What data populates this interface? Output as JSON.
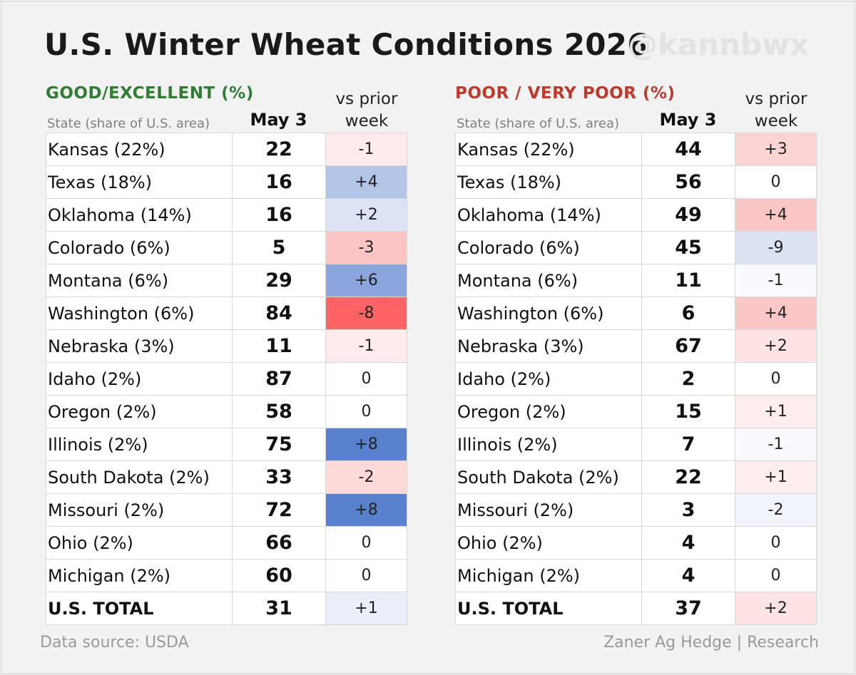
{
  "title": "U.S. Winter Wheat Conditions 2026",
  "watermark": "@kannbwx",
  "footer": {
    "source": "Data source: USDA",
    "credit": "Zaner Ag Hedge | Research"
  },
  "chart_data": [
    {
      "type": "table",
      "title": "GOOD/EXCELLENT (%)",
      "title_color": "#2e7d32",
      "columns": [
        "State (share of U.S. area)",
        "May 3",
        "vs prior week"
      ],
      "rows": [
        {
          "state": "Kansas (22%)",
          "value": 22,
          "change": "-1"
        },
        {
          "state": "Texas (18%)",
          "value": 16,
          "change": "+4"
        },
        {
          "state": "Oklahoma (14%)",
          "value": 16,
          "change": "+2"
        },
        {
          "state": "Colorado (6%)",
          "value": 5,
          "change": "-3"
        },
        {
          "state": "Montana (6%)",
          "value": 29,
          "change": "+6"
        },
        {
          "state": "Washington (6%)",
          "value": 84,
          "change": "-8"
        },
        {
          "state": "Nebraska (3%)",
          "value": 11,
          "change": "-1"
        },
        {
          "state": "Idaho (2%)",
          "value": 87,
          "change": "0"
        },
        {
          "state": "Oregon (2%)",
          "value": 58,
          "change": "0"
        },
        {
          "state": "Illinois (2%)",
          "value": 75,
          "change": "+8"
        },
        {
          "state": "South Dakota (2%)",
          "value": 33,
          "change": "-2"
        },
        {
          "state": "Missouri (2%)",
          "value": 72,
          "change": "+8"
        },
        {
          "state": "Ohio (2%)",
          "value": 66,
          "change": "0"
        },
        {
          "state": "Michigan (2%)",
          "value": 60,
          "change": "0"
        },
        {
          "state": "U.S. TOTAL",
          "value": 31,
          "change": "+1",
          "total": true
        }
      ],
      "change_colors": {
        "-8": "#fe6465",
        "-3": "#fdc4c5",
        "-2": "#fed9da",
        "-1": "#feeaea",
        "0": "#ffffff",
        "+1": "#e9eef8",
        "+2": "#dbe3f4",
        "+4": "#b3c5e7",
        "+6": "#8aa6dc",
        "+8": "#5880cc"
      }
    },
    {
      "type": "table",
      "title": "POOR / VERY POOR (%)",
      "title_color": "#c0392b",
      "columns": [
        "State (share of U.S. area)",
        "May 3",
        "vs prior week"
      ],
      "rows": [
        {
          "state": "Kansas (22%)",
          "value": 44,
          "change": "+3"
        },
        {
          "state": "Texas (18%)",
          "value": 56,
          "change": "0"
        },
        {
          "state": "Oklahoma (14%)",
          "value": 49,
          "change": "+4"
        },
        {
          "state": "Colorado (6%)",
          "value": 45,
          "change": "-9"
        },
        {
          "state": "Montana (6%)",
          "value": 11,
          "change": "-1"
        },
        {
          "state": "Washington (6%)",
          "value": 6,
          "change": "+4"
        },
        {
          "state": "Nebraska (3%)",
          "value": 67,
          "change": "+2"
        },
        {
          "state": "Idaho (2%)",
          "value": 2,
          "change": "0"
        },
        {
          "state": "Oregon (2%)",
          "value": 15,
          "change": "+1"
        },
        {
          "state": "Illinois (2%)",
          "value": 7,
          "change": "-1"
        },
        {
          "state": "South Dakota (2%)",
          "value": 22,
          "change": "+1"
        },
        {
          "state": "Missouri (2%)",
          "value": 3,
          "change": "-2"
        },
        {
          "state": "Ohio (2%)",
          "value": 4,
          "change": "0"
        },
        {
          "state": "Michigan (2%)",
          "value": 4,
          "change": "0"
        },
        {
          "state": "U.S. TOTAL",
          "value": 37,
          "change": "+2",
          "total": true
        }
      ],
      "change_colors": {
        "-9": "#dbe2f2",
        "-2": "#f1f4fa",
        "-1": "#f8f9fc",
        "0": "#ffffff",
        "+1": "#fdeeee",
        "+2": "#fde3e3",
        "+3": "#fcd4d4",
        "+4": "#fbc6c6"
      }
    }
  ]
}
